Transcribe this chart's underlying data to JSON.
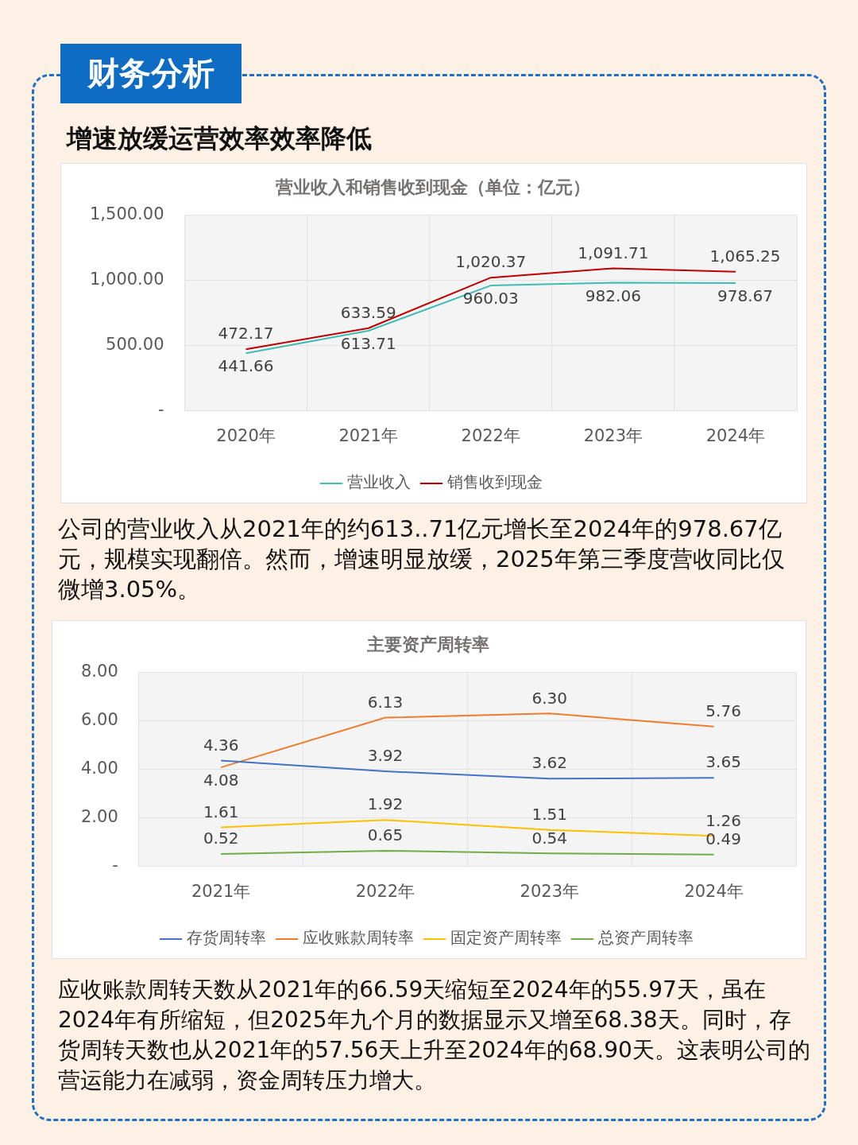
{
  "chart_data": [
    {
      "type": "line",
      "title": "营业收入和销售收到现金（单位：亿元）",
      "annotations": [
        "财务分析",
        "增速放缓运营效率效率降低",
        "公司的营业收入从2021年的约613..71亿元增长至2024年的978.67亿元，规模实现翻倍。然而，增速明显放缓，2025年第三季度营收同比仅微增3.05%。"
      ],
      "categories": [
        "2020年",
        "2021年",
        "2022年",
        "2023年",
        "2024年"
      ],
      "series": [
        {
          "name": "营业收入",
          "color": "#3fbcb4",
          "values": [
            441.66,
            613.71,
            960.03,
            982.06,
            978.67
          ],
          "value_labels": [
            "441.66",
            "613.71",
            "960.03",
            "982.06",
            "978.67"
          ]
        },
        {
          "name": "销售收到现金",
          "color": "#c00000",
          "values": [
            472.17,
            633.59,
            1020.37,
            1091.71,
            1065.25
          ],
          "value_labels": [
            "472.17",
            "633.59",
            "1,020.37",
            "1,091.71",
            "1,065.25"
          ]
        }
      ],
      "ylim": [
        0,
        1500
      ],
      "yticks": [
        {
          "value": 0,
          "label": "-"
        },
        {
          "value": 500,
          "label": "500.00"
        },
        {
          "value": 1000,
          "label": "1,000.00"
        },
        {
          "value": 1500,
          "label": "1,500.00"
        }
      ],
      "grid": true,
      "legend": "bottom",
      "marker": "none"
    },
    {
      "type": "line",
      "title": "主要资产周转率",
      "annotations": [
        "应收账款周转天数从2021年的66.59天缩短至2024年的55.97天，虽在2024年有所缩短，但2025年九个月的数据显示又增至68.38天。同时，存货周转天数也从2021年的57.56天上升至2024年的68.90天。这表明公司的营运能力在减弱，资金周转压力增大。"
      ],
      "categories": [
        "2021年",
        "2022年",
        "2023年",
        "2024年"
      ],
      "series": [
        {
          "name": "存货周转率",
          "color": "#4472c4",
          "values": [
            4.36,
            3.92,
            3.62,
            3.65
          ],
          "value_labels": [
            "4.36",
            "3.92",
            "3.62",
            "3.65"
          ]
        },
        {
          "name": "应收账款周转率",
          "color": "#ed7d31",
          "values": [
            4.08,
            6.13,
            6.3,
            5.76
          ],
          "value_labels": [
            "4.08",
            "6.13",
            "6.30",
            "5.76"
          ]
        },
        {
          "name": "固定资产周转率",
          "color": "#ffc000",
          "values": [
            1.61,
            1.92,
            1.51,
            1.26
          ],
          "value_labels": [
            "1.61",
            "1.92",
            "1.51",
            "1.26"
          ]
        },
        {
          "name": "总资产周转率",
          "color": "#70ad47",
          "values": [
            0.52,
            0.65,
            0.54,
            0.49
          ],
          "value_labels": [
            "0.52",
            "0.65",
            "0.54",
            "0.49"
          ]
        }
      ],
      "ylim": [
        0,
        8
      ],
      "yticks": [
        {
          "value": 0,
          "label": "-"
        },
        {
          "value": 2,
          "label": "2.00"
        },
        {
          "value": 4,
          "label": "4.00"
        },
        {
          "value": 6,
          "label": "6.00"
        },
        {
          "value": 8,
          "label": "8.00"
        }
      ],
      "grid": true,
      "legend": "bottom",
      "marker": "none"
    }
  ]
}
